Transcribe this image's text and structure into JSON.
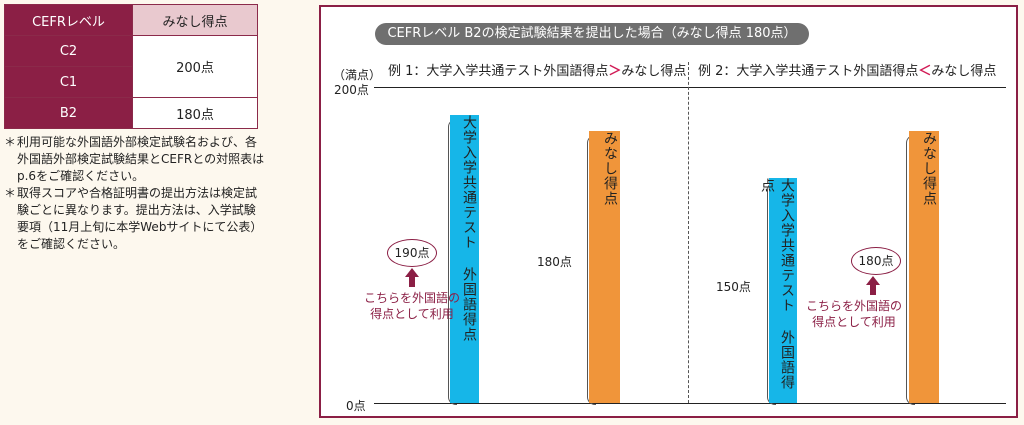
{
  "table": {
    "col_level": "CEFRレベル",
    "col_score": "みなし得点",
    "rows": [
      {
        "level": "C2",
        "score": "200点"
      },
      {
        "level": "C1",
        "score": ""
      },
      {
        "level": "B2",
        "score": "180点"
      }
    ]
  },
  "notes": [
    {
      "mark": "＊",
      "text": "利用可能な外国語外部検定試験名および、各外国語外部検定試験結果とCEFRとの対照表はp.6をご確認ください。"
    },
    {
      "mark": "＊",
      "text": "取得スコアや合格証明書の提出方法は検定試験ごとに異なります。提出方法は、入学試験要項（11月上旬に本学Webサイトにて公表）をご確認ください。"
    }
  ],
  "diagram": {
    "title": "CEFRレベル B2の検定試験結果を提出した場合（みなし得点 180点）",
    "axis_unit": "（満点）",
    "axis_max": "200点",
    "axis_min": "0点",
    "example1": {
      "prefix": "例 1：大学入学共通テスト外国語得点",
      "comparator": "＞",
      "suffix": "みなし得点",
      "bar1_label": "大学入学共通テスト 外国語得点",
      "bar1_value": 190,
      "bar1_score": "190点",
      "bar2_label": "みなし得点",
      "bar2_value": 180,
      "bar2_score": "180点",
      "use_note_line1": "こちらを外国語の",
      "use_note_line2": "得点として利用"
    },
    "example2": {
      "prefix": "例 2：大学入学共通テスト外国語得点",
      "comparator": "＜",
      "suffix": "みなし得点",
      "bar1_label": "大学入学共通テスト 外国語得点",
      "bar1_value": 150,
      "bar1_score": "150点",
      "bar2_label": "みなし得点",
      "bar2_value": 180,
      "bar2_score": "180点",
      "use_note_line1": "こちらを外国語の",
      "use_note_line2": "得点として利用"
    },
    "colors": {
      "blue_bar": "#16b6e8",
      "orange_bar": "#f0953a",
      "accent": "#8b1f45",
      "comparator": "#d11a55"
    }
  }
}
